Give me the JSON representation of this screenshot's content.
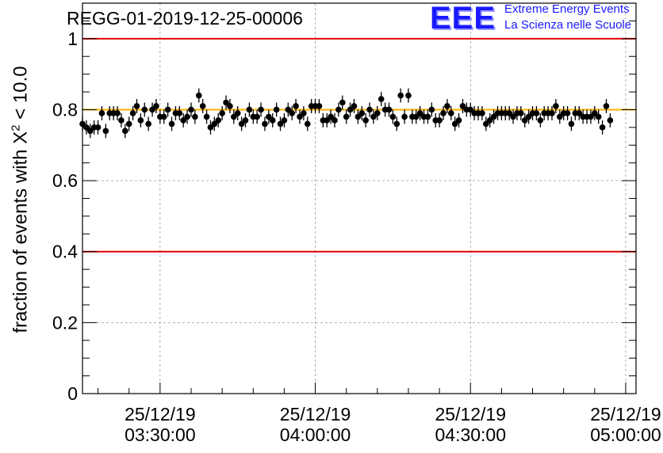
{
  "header": {
    "title": "REGG-01-2019-12-25-00006",
    "logo_text": "EEE",
    "logo_line1": "Extreme Energy Events",
    "logo_line2": "La Scienza nelle Scuole"
  },
  "colors": {
    "threshold_line": "#e00000",
    "mean_line": "#ffb000",
    "marker": "#000000",
    "grid": "#9a9a9a",
    "logo": "#1a1aff"
  },
  "chart_data": {
    "type": "scatter",
    "ylabel_prefix": "fraction of events with X",
    "ylabel_sup": "2",
    "ylabel_suffix": " < 10.0",
    "xlabel": "",
    "ylim": [
      0,
      1.1
    ],
    "xlim": [
      "2019-12-25 03:15:00",
      "2019-12-25 05:02:00"
    ],
    "y_ticks": [
      "0",
      "0.2",
      "0.4",
      "0.6",
      "0.8",
      "1"
    ],
    "x_ticks": [
      {
        "date": "25/12/19",
        "time": "03:30:00"
      },
      {
        "date": "25/12/19",
        "time": "04:00:00"
      },
      {
        "date": "25/12/19",
        "time": "04:30:00"
      },
      {
        "date": "25/12/19",
        "time": "05:00:00"
      }
    ],
    "grid": true,
    "reference_lines": [
      {
        "y": 1.0,
        "color": "#e00000"
      },
      {
        "y": 0.4,
        "color": "#e00000"
      },
      {
        "y": 0.8,
        "color": "#ffb000"
      }
    ],
    "error_bar": 0.02,
    "series": [
      {
        "x_start": "2019-12-25 03:15:00",
        "x_step_minutes": 0.75,
        "values": [
          0.76,
          0.75,
          0.74,
          0.75,
          0.75,
          0.79,
          0.74,
          0.79,
          0.79,
          0.79,
          0.77,
          0.74,
          0.76,
          0.79,
          0.81,
          0.77,
          0.8,
          0.76,
          0.8,
          0.81,
          0.78,
          0.78,
          0.8,
          0.76,
          0.79,
          0.79,
          0.77,
          0.78,
          0.8,
          0.78,
          0.84,
          0.81,
          0.78,
          0.75,
          0.76,
          0.77,
          0.79,
          0.82,
          0.81,
          0.78,
          0.79,
          0.76,
          0.77,
          0.8,
          0.78,
          0.78,
          0.8,
          0.76,
          0.78,
          0.77,
          0.8,
          0.76,
          0.77,
          0.8,
          0.79,
          0.81,
          0.78,
          0.79,
          0.76,
          0.81,
          0.81,
          0.81,
          0.77,
          0.77,
          0.78,
          0.77,
          0.8,
          0.82,
          0.78,
          0.8,
          0.81,
          0.78,
          0.79,
          0.77,
          0.8,
          0.78,
          0.79,
          0.83,
          0.8,
          0.8,
          0.78,
          0.76,
          0.84,
          0.78,
          0.84,
          0.78,
          0.78,
          0.79,
          0.78,
          0.78,
          0.8,
          0.77,
          0.77,
          0.79,
          0.81,
          0.79,
          0.76,
          0.77,
          0.81,
          0.8,
          0.8,
          0.79,
          0.79,
          0.79,
          0.76,
          0.77,
          0.78,
          0.79,
          0.79,
          0.79,
          0.79,
          0.78,
          0.79,
          0.79,
          0.77,
          0.78,
          0.79,
          0.79,
          0.77,
          0.79,
          0.79,
          0.79,
          0.81,
          0.78,
          0.79,
          0.79,
          0.76,
          0.79,
          0.79,
          0.78,
          0.78,
          0.78,
          0.79,
          0.78,
          0.75,
          0.81,
          0.77
        ]
      }
    ]
  }
}
